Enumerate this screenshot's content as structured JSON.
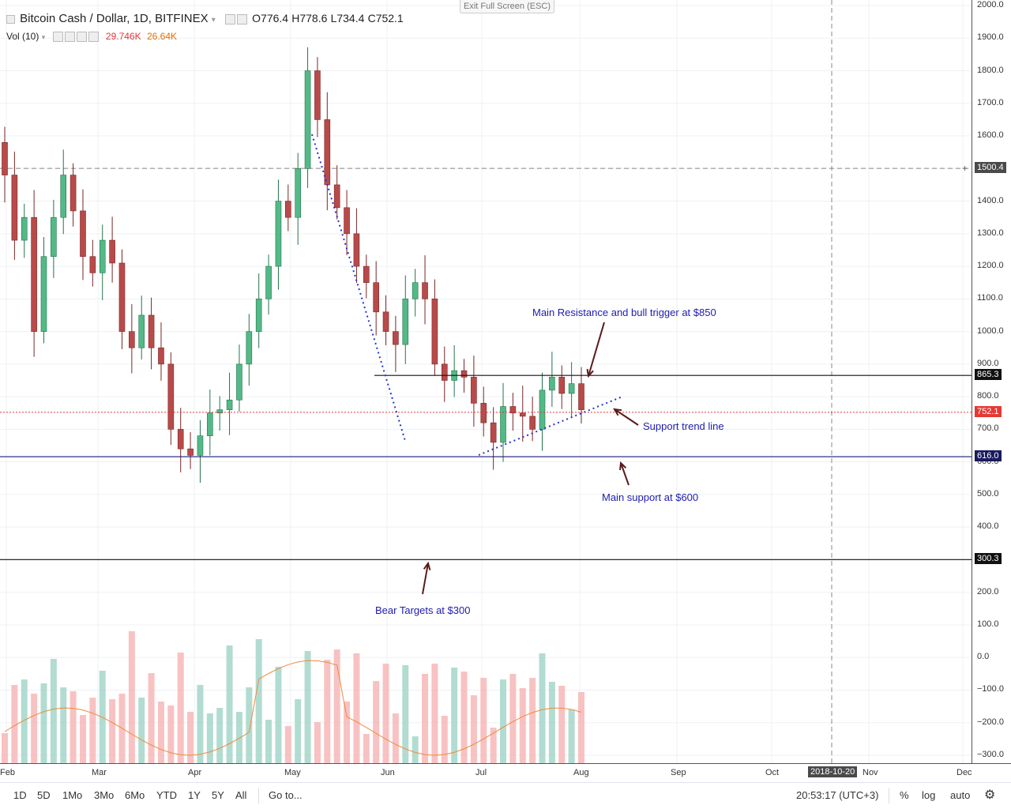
{
  "exit_fullscreen": "Exit Full Screen (ESC)",
  "header": {
    "symbol": "Bitcoin Cash / Dollar, 1D, BITFINEX",
    "open": "O776.4",
    "high": "H778.6",
    "low": "L734.4",
    "close": "C752.1",
    "vol_label": "Vol (10)",
    "vol_value1": "29.746K",
    "vol_value2": "26.64K"
  },
  "colors": {
    "up": "#26a69a",
    "down": "#ef5350",
    "vol_up": "#a5d6c9",
    "vol_down": "#f7b7b7",
    "annotation": "#1c1cb4",
    "arrow": "#5a1a1a",
    "price_line": "#e53935",
    "level_support": "#1a1a7a"
  },
  "price_axis": [
    "2000.0",
    "1900.0",
    "1800.0",
    "1700.0",
    "1600.0",
    "1500.0",
    "1400.0",
    "1300.0",
    "1200.0",
    "1100.0",
    "1000.0",
    "900.0",
    "800.0",
    "700.0",
    "600.0",
    "500.0",
    "400.0",
    "300.0",
    "200.0",
    "100.0",
    "0.0",
    "−100.0",
    "−200.0",
    "−300.0"
  ],
  "price_labels": {
    "crosshair": "1500.4",
    "resistance": "865.3",
    "current": "752.1",
    "support": "616.0",
    "bear": "300.3"
  },
  "time_axis": [
    "Feb",
    "Mar",
    "Apr",
    "May",
    "Jun",
    "Jul",
    "Aug",
    "Sep",
    "Oct",
    "Nov",
    "Dec"
  ],
  "time_cursor": "2018-10-20",
  "annotations": {
    "resistance": "Main Resistance and bull trigger at $850",
    "trend": "Support trend line",
    "support": "Main support at $600",
    "bear": "Bear Targets at $300"
  },
  "bottom_bar": {
    "timeframes": [
      "1D",
      "5D",
      "1Mo",
      "3Mo",
      "6Mo",
      "YTD",
      "1Y",
      "5Y",
      "All"
    ],
    "goto": "Go to...",
    "clock": "20:53:17 (UTC+3)",
    "percent": "%",
    "log": "log",
    "auto": "auto"
  },
  "chart_data": {
    "type": "candlestick",
    "title": "Bitcoin Cash / Dollar, 1D, BITFINEX",
    "x": [
      "Feb",
      "Mar",
      "Apr",
      "May",
      "Jun",
      "Jul",
      "Aug"
    ],
    "ylim": [
      -300,
      2000
    ],
    "close_series": [
      1480,
      1280,
      1350,
      1000,
      1230,
      1350,
      1480,
      1370,
      1230,
      1180,
      1280,
      1210,
      1000,
      950,
      1050,
      950,
      900,
      700,
      640,
      620,
      680,
      750,
      760,
      790,
      900,
      1000,
      1100,
      1200,
      1400,
      1350,
      1500,
      1800,
      1650,
      1450,
      1380,
      1300,
      1200,
      1150,
      1060,
      1000,
      960,
      1100,
      1150,
      1100,
      900,
      850,
      880,
      860,
      780,
      720,
      660,
      770,
      750,
      740,
      700,
      820,
      860,
      810,
      840,
      760
    ],
    "levels": {
      "resistance": 865.3,
      "current": 752.1,
      "support": 616.0,
      "bear": 300.3
    },
    "grid": true
  }
}
